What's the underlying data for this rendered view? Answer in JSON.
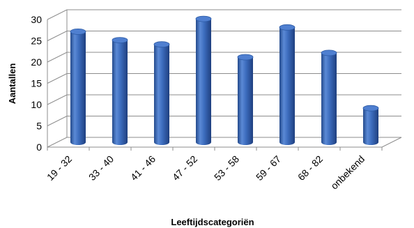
{
  "chart_data": {
    "type": "bar",
    "style": "3d-cylinder",
    "categories": [
      "19 - 32",
      "33 - 40",
      "41 - 46",
      "47 - 52",
      "53 - 58",
      "59 - 67",
      "68 - 82",
      "onbekend"
    ],
    "values": [
      26,
      24,
      23,
      29,
      20,
      27,
      21,
      8
    ],
    "title": "",
    "xlabel": "Leeftijdscategoriën",
    "ylabel": "Aantallen",
    "ylim": [
      0,
      30
    ],
    "yticks": [
      0,
      5,
      10,
      15,
      20,
      25,
      30
    ],
    "grid": true,
    "legend": "none",
    "colors": {
      "bar": "#3f6fbf",
      "bar_dark": "#1f3f7f",
      "bar_light": "#8fb3ea",
      "grid": "#8c8c8c"
    }
  }
}
